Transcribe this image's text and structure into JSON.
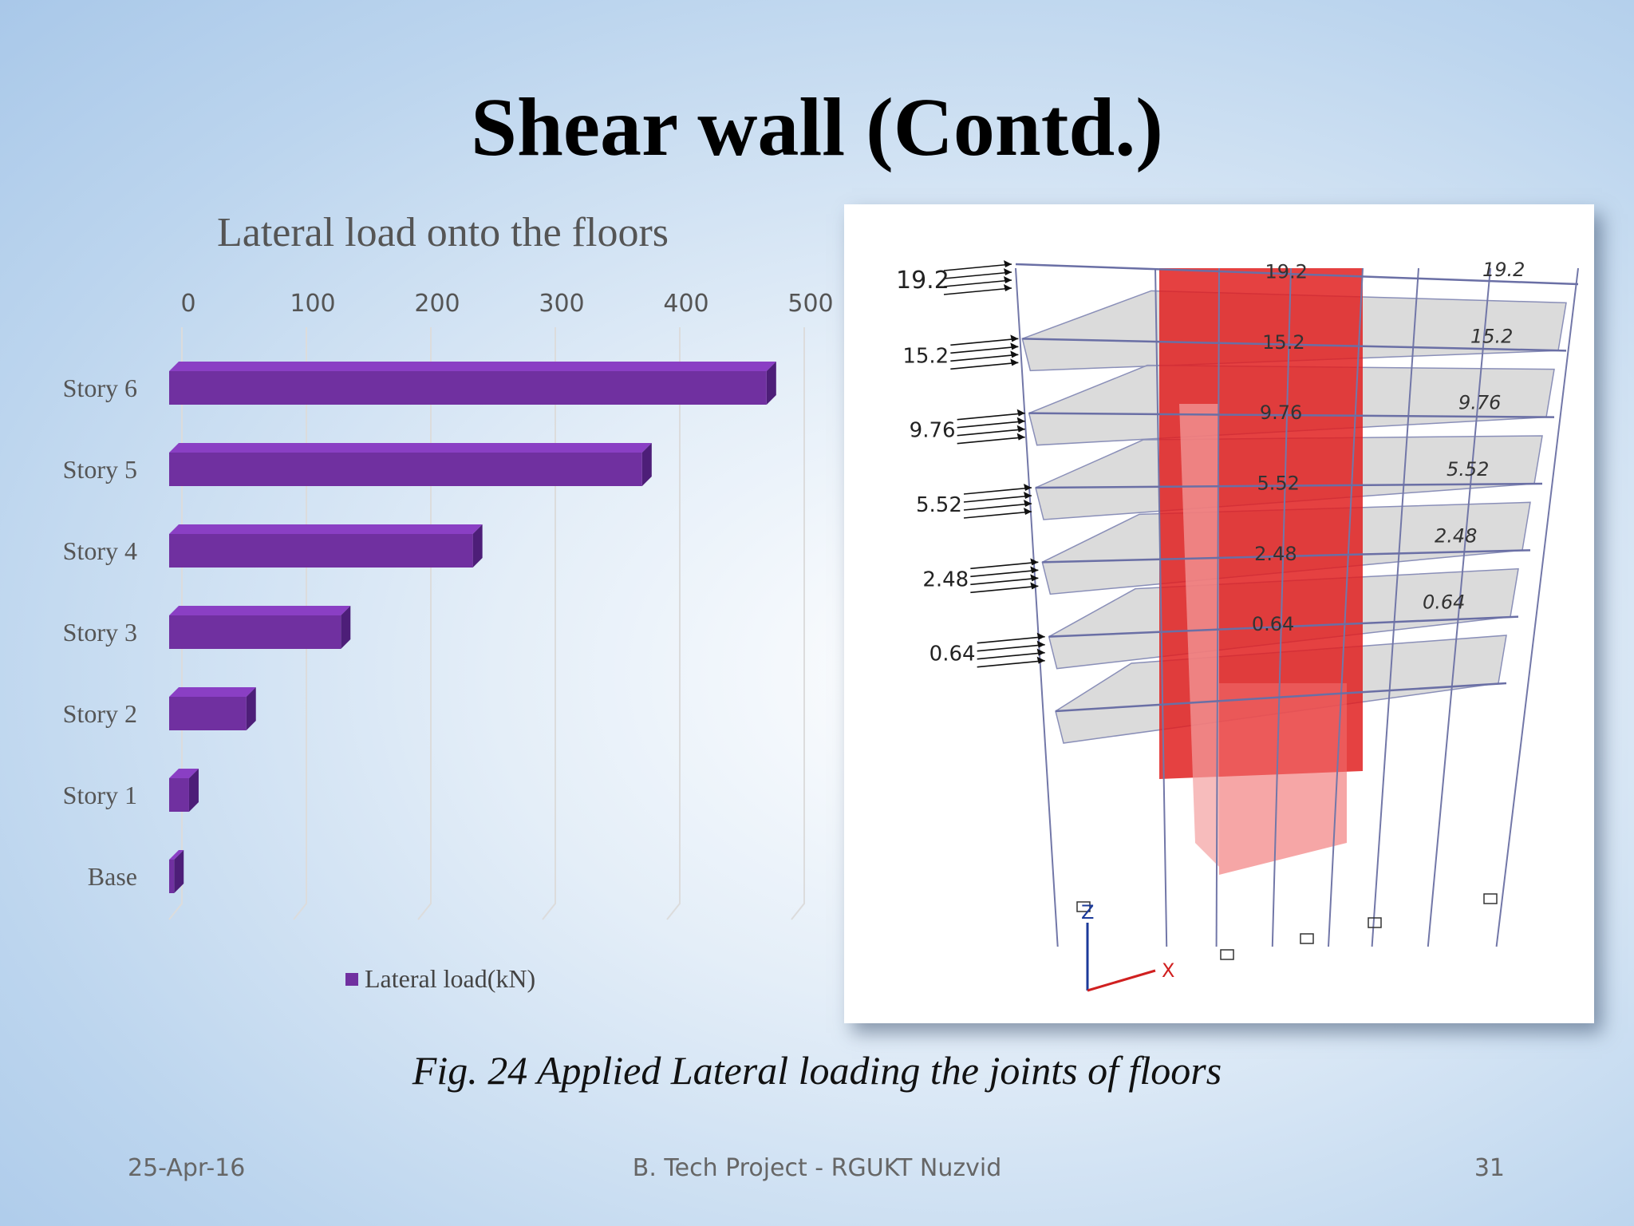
{
  "slide": {
    "title": "Shear wall (Contd.)",
    "caption": "Fig. 24 Applied Lateral loading the joints of floors",
    "footer": {
      "date": "25-Apr-16",
      "center": "B. Tech Project - RGUKT Nuzvid",
      "page": "31"
    }
  },
  "chart_data": {
    "type": "bar",
    "orientation": "horizontal",
    "title": "Lateral load onto the floors",
    "categories": [
      "Story 6",
      "Story 5",
      "Story 4",
      "Story 3",
      "Story 2",
      "Story 1",
      "Base"
    ],
    "series": [
      {
        "name": "Lateral load(kN)",
        "values": [
          480,
          380,
          244,
          138,
          62,
          16,
          4
        ]
      }
    ],
    "xlim": [
      0,
      500
    ],
    "x_ticks": [
      0,
      100,
      200,
      300,
      400,
      500
    ],
    "grid": true,
    "legend_position": "bottom",
    "color": "#7030a0"
  },
  "figure": {
    "type": "3d-frame-model",
    "loads_top_to_bottom": [
      "19.2",
      "15.2",
      "9.76",
      "5.52",
      "2.48",
      "0.64"
    ],
    "axis_labels": [
      "Z",
      "X"
    ],
    "wall_color": "#e02020"
  }
}
